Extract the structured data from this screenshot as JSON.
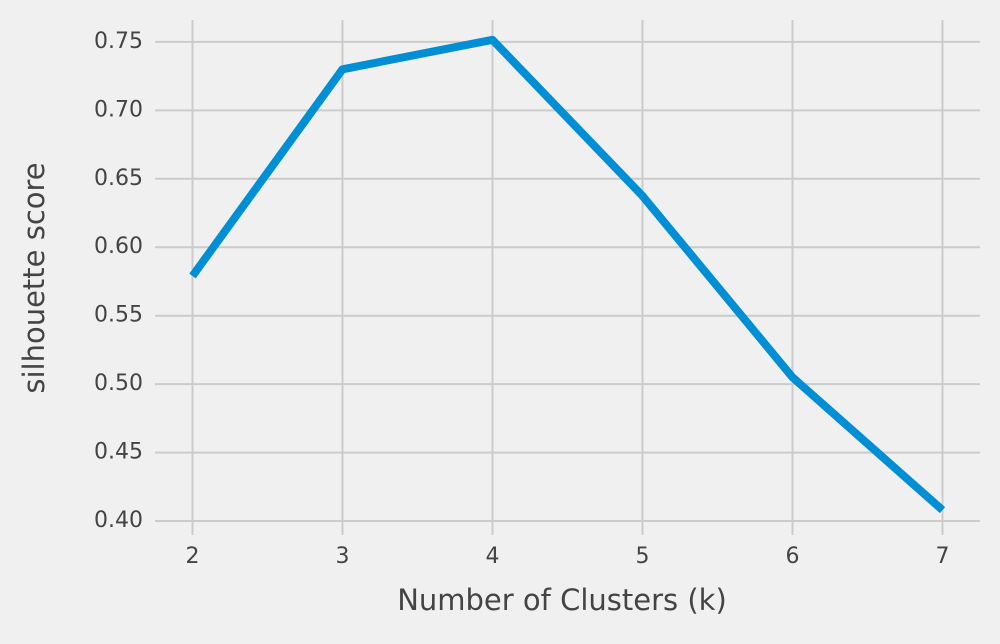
{
  "chart_data": {
    "type": "line",
    "xlabel": "Number of Clusters (k)",
    "ylabel": "silhouette score",
    "x": [
      2,
      3,
      4,
      5,
      6,
      7
    ],
    "series": [
      {
        "color": "#008fd5",
        "values": [
          0.579,
          0.73,
          0.7515,
          0.6375,
          0.505,
          0.408
        ]
      }
    ],
    "xlim": [
      1.75,
      7.25
    ],
    "xticks": [
      2,
      3,
      4,
      5,
      6,
      7
    ],
    "ylim": [
      0.3898,
      0.766
    ],
    "yticks": [
      {
        "value": 0.4,
        "label": "0.40"
      },
      0.45,
      {
        "value": 0.5,
        "label": "0.50"
      },
      0.55,
      {
        "value": 0.6,
        "label": "0.60"
      },
      0.65,
      {
        "value": 0.7,
        "label": "0.70"
      },
      0.75
    ],
    "grid": true
  }
}
